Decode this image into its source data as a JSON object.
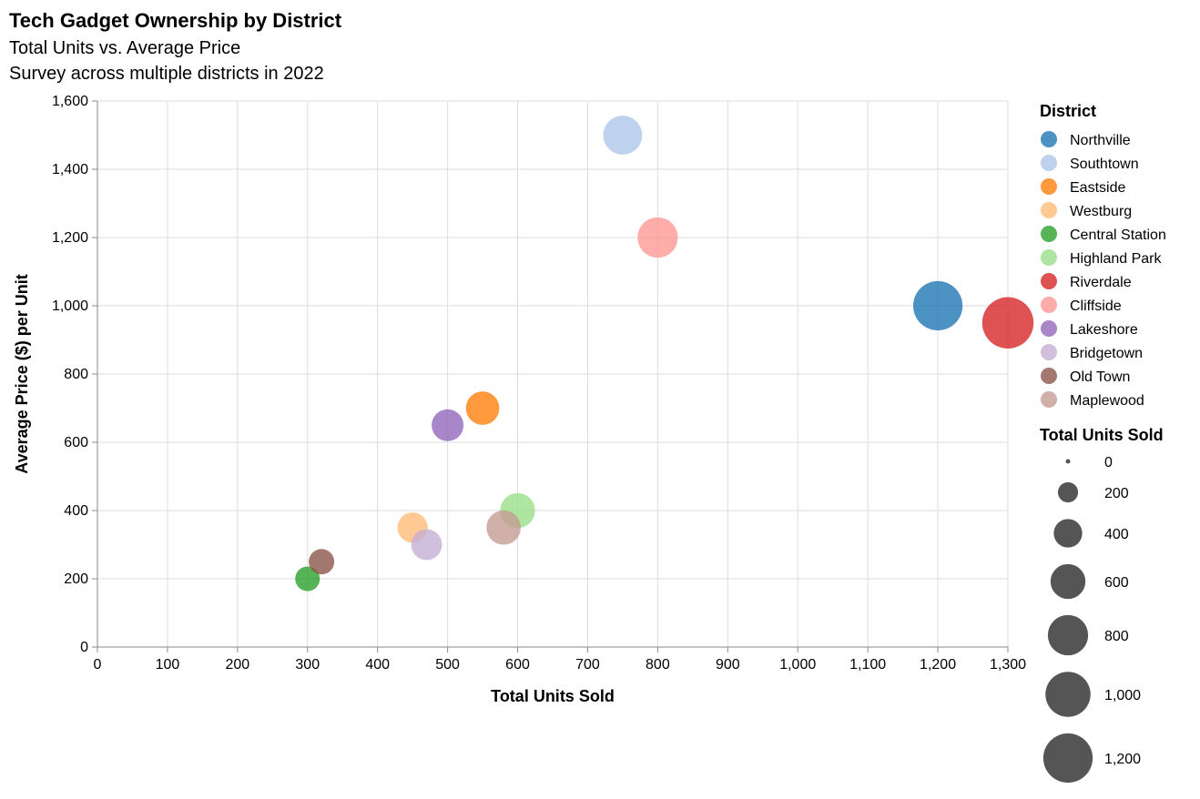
{
  "chart_data": {
    "type": "scatter",
    "title": "Tech Gadget Ownership by District",
    "subtitle": [
      "Total Units vs. Average Price",
      "Survey across multiple districts in 2022"
    ],
    "xlabel": "Total Units Sold",
    "ylabel": "Average Price ($) per Unit",
    "xlim": [
      0,
      1300
    ],
    "ylim": [
      0,
      1600
    ],
    "x_ticks": [
      0,
      100,
      200,
      300,
      400,
      500,
      600,
      700,
      800,
      900,
      1000,
      1100,
      1200,
      1300
    ],
    "x_tick_labels": [
      "0",
      "100",
      "200",
      "300",
      "400",
      "500",
      "600",
      "700",
      "800",
      "900",
      "1,000",
      "1,100",
      "1,200",
      "1,300"
    ],
    "y_ticks": [
      0,
      200,
      400,
      600,
      800,
      1000,
      1200,
      1400,
      1600
    ],
    "y_tick_labels": [
      "0",
      "200",
      "400",
      "600",
      "800",
      "1,000",
      "1,200",
      "1,400",
      "1,600"
    ],
    "grid": true,
    "legend_position": "right",
    "color_legend_title": "District",
    "size_legend_title": "Total Units Sold",
    "size_legend_values": [
      0,
      200,
      400,
      600,
      800,
      1000,
      1200
    ],
    "size_legend_labels": [
      "0",
      "200",
      "400",
      "600",
      "800",
      "1,000",
      "1,200"
    ],
    "size_legend_color": "#555555",
    "points": [
      {
        "district": "Northville",
        "units": 1200,
        "price": 1000,
        "color": "#1f77b4"
      },
      {
        "district": "Southtown",
        "units": 750,
        "price": 1500,
        "color": "#aec7e8"
      },
      {
        "district": "Eastside",
        "units": 550,
        "price": 700,
        "color": "#ff7f0e"
      },
      {
        "district": "Westburg",
        "units": 450,
        "price": 350,
        "color": "#ffbb78"
      },
      {
        "district": "Central Station",
        "units": 300,
        "price": 200,
        "color": "#2ca02c"
      },
      {
        "district": "Highland Park",
        "units": 600,
        "price": 400,
        "color": "#98df8a"
      },
      {
        "district": "Riverdale",
        "units": 1300,
        "price": 950,
        "color": "#d62728"
      },
      {
        "district": "Cliffside",
        "units": 800,
        "price": 1200,
        "color": "#ff9896"
      },
      {
        "district": "Lakeshore",
        "units": 500,
        "price": 650,
        "color": "#9467bd"
      },
      {
        "district": "Bridgetown",
        "units": 470,
        "price": 300,
        "color": "#c5b0d5"
      },
      {
        "district": "Old Town",
        "units": 320,
        "price": 250,
        "color": "#8c564b"
      },
      {
        "district": "Maplewood",
        "units": 580,
        "price": 350,
        "color": "#c49c94"
      }
    ]
  }
}
